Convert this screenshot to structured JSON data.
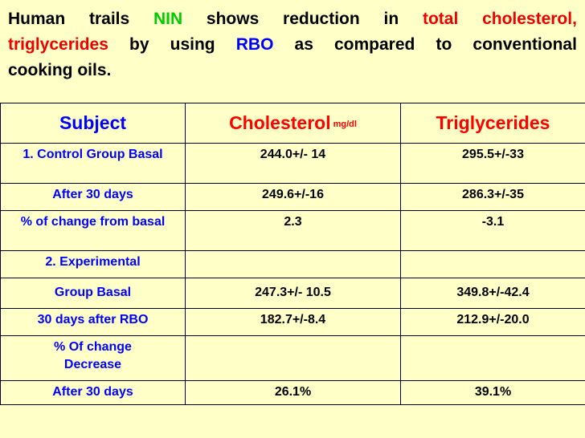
{
  "heading": {
    "line1": [
      "Human",
      "trails",
      "NIN",
      "shows",
      "reduction",
      "in",
      "total",
      "cholesterol,"
    ],
    "line2": [
      "triglycerides",
      "by",
      "using",
      "RBO",
      "as",
      "compared",
      "to",
      "conventional"
    ],
    "line3": "cooking oils."
  },
  "colors": {
    "background": "#ffffc8",
    "subject_text": "#0000ff",
    "header_red": "#ff0000",
    "highlight_green": "#00cc00",
    "highlight_red": "#ee0000",
    "highlight_blue": "#0000ff"
  },
  "table": {
    "headers": {
      "subject": "Subject",
      "cholesterol": "Cholesterol",
      "cholesterol_unit": "mg/dl",
      "triglycerides": "Triglycerides"
    },
    "rows": [
      {
        "subject": "1. Control Group Basal",
        "cholesterol": "244.0+/- 14",
        "triglycerides": "295.5+/-33"
      },
      {
        "subject": "After 30 days",
        "cholesterol": "249.6+/-16",
        "triglycerides": "286.3+/-35"
      },
      {
        "subject": "% of change from basal",
        "cholesterol": "2.3",
        "triglycerides": "-3.1"
      },
      {
        "subject": "2. Experimental",
        "cholesterol": "",
        "triglycerides": ""
      },
      {
        "subject": "Group Basal",
        "cholesterol": "247.3+/- 10.5",
        "triglycerides": "349.8+/-42.4"
      },
      {
        "subject": "30 days after RBO",
        "cholesterol": "182.7+/-8.4",
        "triglycerides": "212.9+/-20.0"
      },
      {
        "subject": "% Of change Decrease",
        "cholesterol": "",
        "triglycerides": ""
      },
      {
        "subject": "After 30 days",
        "cholesterol": "26.1%",
        "triglycerides": "39.1%"
      }
    ]
  }
}
